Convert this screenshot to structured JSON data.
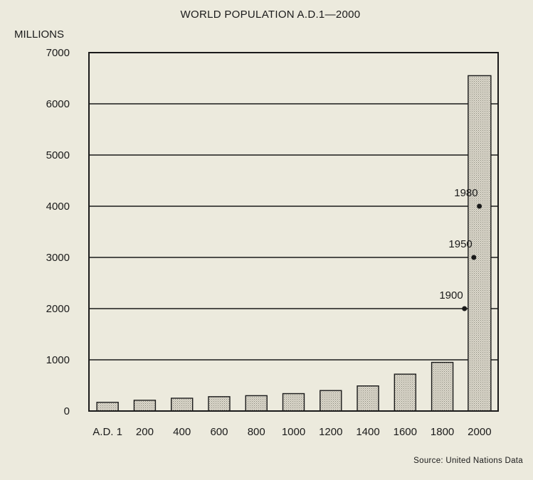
{
  "chart_data": {
    "type": "bar",
    "title": "WORLD POPULATION A.D.1—2000",
    "ylabel": "MILLIONS",
    "xlabel": "",
    "categories": [
      "A.D. 1",
      "200",
      "400",
      "600",
      "800",
      "1000",
      "1200",
      "1400",
      "1600",
      "1800",
      "2000"
    ],
    "values": [
      170,
      210,
      250,
      280,
      300,
      340,
      400,
      490,
      720,
      950,
      6550
    ],
    "ylim": [
      0,
      7000
    ],
    "yticks": [
      0,
      1000,
      2000,
      3000,
      4000,
      5000,
      6000,
      7000
    ],
    "grid": true,
    "bar_fill": "#c9c6b8",
    "annotations": [
      {
        "label": "1980",
        "year": 1980,
        "value": 4000
      },
      {
        "label": "1950",
        "year": 1950,
        "value": 3000
      },
      {
        "label": "1900",
        "year": 1900,
        "value": 2000
      }
    ],
    "source": "Source: United Nations Data"
  }
}
